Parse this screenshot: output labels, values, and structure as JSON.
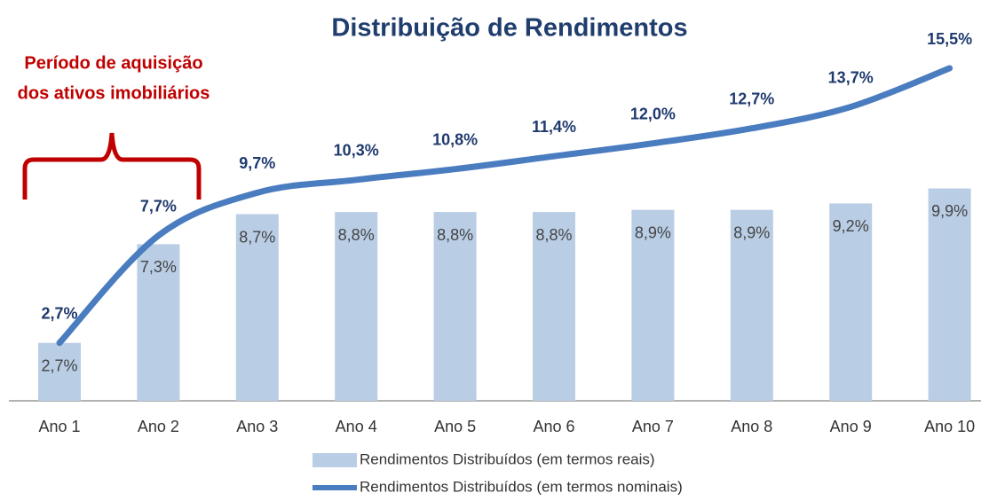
{
  "chart_data": {
    "type": "bar-line",
    "title": "Distribuição de Rendimentos",
    "annotation": [
      "Período de aquisição",
      "dos ativos imobiliários"
    ],
    "categories": [
      "Ano 1",
      "Ano 2",
      "Ano 3",
      "Ano 4",
      "Ano 5",
      "Ano 6",
      "Ano 7",
      "Ano 8",
      "Ano 9",
      "Ano 10"
    ],
    "series": [
      {
        "name": "Rendimentos Distribuídos (em termos reais)",
        "type": "bar",
        "color": "#b9cde5",
        "values": [
          2.7,
          7.3,
          8.7,
          8.8,
          8.8,
          8.8,
          8.9,
          8.9,
          9.2,
          9.9
        ],
        "value_labels": [
          "2,7%",
          "7,3%",
          "8,7%",
          "8,8%",
          "8,8%",
          "8,8%",
          "8,9%",
          "8,9%",
          "9,2%",
          "9,9%"
        ]
      },
      {
        "name": "Rendimentos Distribuídos (em termos nominais)",
        "type": "line",
        "color": "#4a7cc0",
        "values": [
          2.7,
          7.7,
          9.7,
          10.3,
          10.8,
          11.4,
          12.0,
          12.7,
          13.7,
          15.5
        ],
        "value_labels": [
          "2,7%",
          "7,7%",
          "9,7%",
          "10,3%",
          "10,8%",
          "11,4%",
          "12,0%",
          "12,7%",
          "13,7%",
          "15,5%"
        ]
      }
    ]
  }
}
